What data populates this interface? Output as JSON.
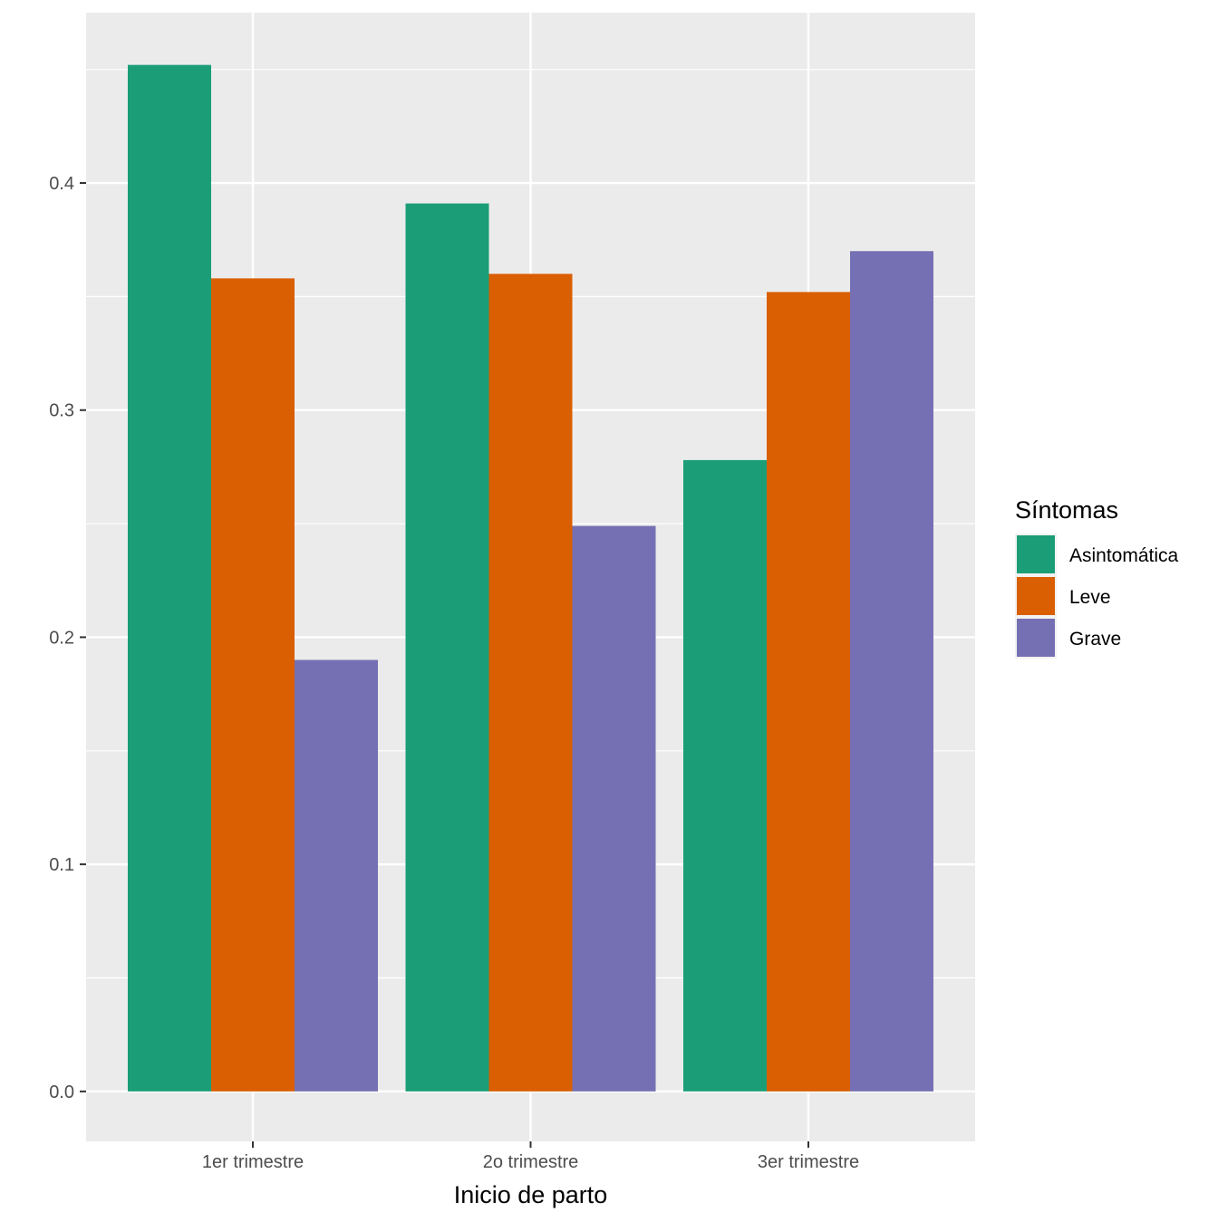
{
  "chart_data": {
    "type": "bar",
    "categories": [
      "1er trimestre",
      "2o trimestre",
      "3er trimestre"
    ],
    "series": [
      {
        "name": "Asintomática",
        "values": [
          0.452,
          0.391,
          0.278
        ],
        "color": "#1B9E77"
      },
      {
        "name": "Leve",
        "values": [
          0.358,
          0.36,
          0.352
        ],
        "color": "#D95F02"
      },
      {
        "name": "Grave",
        "values": [
          0.19,
          0.249,
          0.37
        ],
        "color": "#7570B3"
      }
    ],
    "title": "",
    "xlabel": "Inicio de parto",
    "ylabel": "",
    "ylim": [
      -0.022,
      0.475
    ],
    "yticks": [
      "0.0",
      "0.1",
      "0.2",
      "0.3",
      "0.4"
    ],
    "ytick_values": [
      0.0,
      0.1,
      0.2,
      0.3,
      0.4
    ],
    "grid": true,
    "panel_color": "#EBEBEB",
    "legend": {
      "title": "Síntomas",
      "position": "right"
    }
  }
}
